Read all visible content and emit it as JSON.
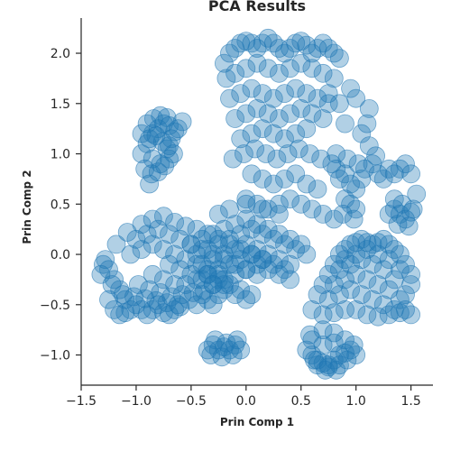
{
  "chart_data": {
    "type": "scatter",
    "title": "PCA Results",
    "xlabel": "Prin Comp 1",
    "ylabel": "Prin Comp 2",
    "xlim": [
      -1.5,
      1.7
    ],
    "ylim": [
      -1.3,
      2.35
    ],
    "xticks": [
      -1.5,
      -1.0,
      -0.5,
      0.0,
      0.5,
      1.0,
      1.5
    ],
    "xtick_labels": [
      "−1.5",
      "−1.0",
      "−0.5",
      "0.0",
      "0.5",
      "1.0",
      "1.5"
    ],
    "yticks": [
      -1.0,
      -0.5,
      0.0,
      0.5,
      1.0,
      1.5,
      2.0
    ],
    "ytick_labels": [
      "−1.0",
      "−0.5",
      "0.0",
      "0.5",
      "1.0",
      "1.5",
      "2.0"
    ],
    "grid": false,
    "marker_color": "#1f77b4",
    "marker_alpha": 0.35,
    "series": [
      {
        "x": [
          -1.05,
          -1.0,
          -0.95,
          -0.9,
          -0.85,
          -0.8,
          -0.75,
          -0.7,
          -0.65,
          -0.6,
          -1.1,
          -1.15,
          -1.2,
          -1.25,
          -1.28,
          -1.3,
          -1.22,
          -1.12,
          -1.02,
          -0.92,
          -0.82,
          -0.72,
          -0.62,
          -0.52,
          -0.45,
          -0.4,
          -0.35,
          -0.3,
          -0.25,
          -0.2,
          -1.05,
          -0.95,
          -0.85,
          -0.75,
          -0.65,
          -0.55,
          -0.45,
          -0.35,
          -0.25,
          -1.0,
          -0.9,
          -0.8,
          -0.7,
          -0.6,
          -0.5,
          -0.4,
          -0.3,
          -0.2,
          -0.1,
          0.0,
          0.1,
          -0.95,
          -0.85,
          -0.75,
          -0.65,
          -0.55,
          -0.45,
          -0.35,
          -0.25,
          -0.15,
          -0.05,
          0.05,
          0.15,
          -0.85,
          -0.75,
          -0.65,
          -0.55,
          -0.45,
          -0.35,
          -0.25,
          -0.15,
          -0.05,
          0.05,
          -0.7,
          -0.6,
          -0.5,
          -0.4,
          -0.3,
          -0.2,
          -0.1,
          0.0,
          -1.2,
          -1.15,
          -1.1,
          -1.25,
          -1.32,
          -0.98,
          -0.88,
          -0.78,
          -0.68,
          -0.58,
          -0.48,
          -0.38,
          -1.18,
          -1.08
        ],
        "y": [
          -0.55,
          -0.5,
          -0.55,
          -0.6,
          -0.55,
          -0.5,
          -0.58,
          -0.6,
          -0.55,
          -0.52,
          -0.45,
          -0.35,
          -0.25,
          -0.15,
          -0.05,
          -0.1,
          -0.3,
          -0.4,
          -0.42,
          -0.44,
          -0.46,
          -0.48,
          -0.5,
          -0.45,
          -0.5,
          -0.4,
          -0.45,
          -0.5,
          -0.4,
          -0.3,
          0.0,
          0.05,
          0.1,
          0.05,
          0.0,
          -0.05,
          -0.1,
          -0.15,
          -0.2,
          0.15,
          0.2,
          0.25,
          0.2,
          0.15,
          0.1,
          0.05,
          0.0,
          -0.05,
          -0.1,
          -0.15,
          -0.2,
          0.3,
          0.35,
          0.38,
          0.32,
          0.28,
          0.25,
          0.2,
          0.15,
          0.1,
          0.05,
          0.0,
          -0.05,
          -0.2,
          -0.25,
          -0.3,
          -0.3,
          -0.25,
          -0.2,
          -0.25,
          -0.3,
          -0.35,
          -0.4,
          -0.1,
          -0.15,
          -0.2,
          -0.25,
          -0.3,
          -0.35,
          -0.4,
          -0.45,
          -0.55,
          -0.6,
          -0.58,
          -0.45,
          -0.2,
          -0.3,
          -0.35,
          -0.38,
          -0.42,
          -0.4,
          -0.38,
          -0.36,
          0.1,
          0.22
        ]
      },
      {
        "x": [
          -0.85,
          -0.8,
          -0.75,
          -0.7,
          -0.65,
          -0.9,
          -0.95,
          -0.85,
          -0.78,
          -0.72,
          -0.68,
          -0.88,
          -0.82,
          -0.76,
          -0.7,
          -0.66,
          -0.92,
          -0.86,
          -0.8,
          -0.74,
          -0.7,
          -0.9,
          -0.84,
          -0.78,
          -0.72,
          -0.62,
          -0.58,
          -0.95,
          -0.88
        ],
        "y": [
          1.2,
          1.25,
          1.3,
          1.28,
          1.22,
          1.1,
          1.0,
          0.95,
          0.9,
          1.05,
          1.15,
          1.15,
          1.18,
          1.12,
          1.08,
          1.0,
          0.85,
          0.8,
          0.82,
          0.88,
          0.95,
          1.3,
          1.35,
          1.38,
          1.36,
          1.25,
          1.32,
          1.2,
          0.7
        ]
      },
      {
        "x": [
          -0.2,
          -0.15,
          -0.1,
          -0.05,
          0.0,
          0.05,
          0.1,
          0.15,
          0.2,
          0.25,
          0.3,
          0.35,
          0.4,
          0.45,
          0.5,
          0.55,
          0.6,
          0.65,
          0.7,
          0.75,
          0.8,
          0.85,
          -0.18,
          -0.1,
          0.0,
          0.1,
          0.2,
          0.3,
          0.4,
          0.5,
          0.6,
          0.7,
          0.8,
          -0.15,
          -0.05,
          0.05,
          0.15,
          0.25,
          0.35,
          0.45,
          0.55,
          0.65,
          0.75,
          -0.1,
          0.0,
          0.1,
          0.2,
          0.3,
          0.4,
          0.5,
          0.6,
          0.7,
          -0.05,
          0.05,
          0.15,
          0.25,
          0.35,
          0.45,
          0.55,
          -0.12,
          -0.02,
          0.08,
          0.18,
          0.28,
          0.38,
          0.48,
          0.58,
          0.68,
          0.78,
          0.82,
          0.05,
          0.15,
          0.25,
          0.35,
          0.45,
          0.55,
          0.65,
          0.0,
          0.1,
          0.2,
          0.3,
          0.4,
          0.5,
          0.6,
          0.7,
          0.8,
          0.75,
          0.85,
          0.9
        ],
        "y": [
          1.9,
          2.0,
          2.05,
          2.1,
          2.12,
          2.1,
          2.05,
          2.1,
          2.15,
          2.1,
          2.05,
          2.0,
          2.05,
          2.1,
          2.12,
          2.08,
          2.0,
          2.05,
          2.1,
          2.05,
          2.0,
          1.95,
          1.75,
          1.8,
          1.85,
          1.9,
          1.85,
          1.8,
          1.85,
          1.9,
          1.85,
          1.8,
          1.75,
          1.55,
          1.6,
          1.65,
          1.6,
          1.55,
          1.6,
          1.65,
          1.6,
          1.55,
          1.5,
          1.35,
          1.4,
          1.45,
          1.4,
          1.35,
          1.4,
          1.45,
          1.4,
          1.35,
          1.15,
          1.2,
          1.25,
          1.2,
          1.15,
          1.2,
          1.25,
          0.95,
          1.0,
          1.05,
          1.0,
          0.95,
          1.0,
          1.05,
          1.0,
          0.95,
          0.9,
          0.85,
          0.8,
          0.75,
          0.7,
          0.75,
          0.8,
          0.7,
          0.65,
          0.55,
          0.5,
          0.45,
          0.5,
          0.55,
          0.5,
          0.45,
          0.4,
          0.35,
          1.6,
          1.5,
          1.3
        ]
      },
      {
        "x": [
          -0.5,
          -0.4,
          -0.3,
          -0.2,
          -0.1,
          0.0,
          0.1,
          0.2,
          0.3,
          0.4,
          0.5,
          -0.45,
          -0.35,
          -0.25,
          -0.15,
          -0.05,
          0.05,
          0.15,
          0.25,
          0.35,
          0.45,
          0.55,
          -0.4,
          -0.3,
          -0.2,
          -0.1,
          0.0,
          0.1,
          0.2,
          0.3,
          0.4,
          -0.35,
          -0.25,
          -0.15,
          -0.05,
          0.05,
          0.15,
          0.25,
          0.35,
          -0.3,
          -0.2,
          -0.1,
          0.0,
          0.1,
          0.2,
          0.3,
          0.4,
          -0.25,
          -0.15,
          0.0,
          0.15,
          0.3
        ],
        "y": [
          0.1,
          0.15,
          0.2,
          0.25,
          0.3,
          0.35,
          0.3,
          0.25,
          0.2,
          0.15,
          0.1,
          0.0,
          0.05,
          0.1,
          0.15,
          0.2,
          0.25,
          0.2,
          0.15,
          0.1,
          0.05,
          0.0,
          -0.1,
          -0.05,
          0.0,
          0.05,
          0.1,
          0.05,
          0.0,
          -0.05,
          -0.1,
          -0.2,
          -0.15,
          -0.1,
          -0.05,
          0.0,
          -0.05,
          -0.1,
          -0.15,
          -0.3,
          -0.25,
          -0.2,
          -0.15,
          -0.1,
          -0.15,
          -0.2,
          -0.25,
          0.4,
          0.45,
          0.5,
          0.45,
          0.4
        ]
      },
      {
        "x": [
          0.85,
          0.9,
          0.95,
          1.0,
          1.05,
          1.1,
          1.15,
          1.2,
          1.25,
          1.3,
          1.35,
          1.4,
          1.45,
          1.5,
          0.8,
          0.9,
          1.0,
          1.1,
          1.2,
          1.3,
          1.4,
          1.5,
          0.75,
          0.85,
          0.95,
          1.05,
          1.15,
          1.25,
          1.35,
          1.45,
          0.7,
          0.8,
          0.9,
          1.0,
          1.1,
          1.2,
          1.3,
          1.4,
          0.65,
          0.75,
          0.85,
          0.95,
          1.05,
          1.15,
          1.25,
          1.35,
          1.45,
          1.5,
          0.6,
          0.7,
          0.8,
          0.9,
          1.0,
          1.1,
          1.2,
          1.3,
          1.4
        ],
        "y": [
          0.0,
          0.05,
          0.1,
          0.12,
          0.15,
          0.12,
          0.1,
          0.12,
          0.15,
          0.1,
          0.05,
          0.0,
          -0.1,
          -0.2,
          -0.1,
          -0.05,
          0.0,
          0.05,
          0.0,
          -0.05,
          -0.15,
          -0.3,
          -0.2,
          -0.15,
          -0.1,
          -0.05,
          -0.1,
          -0.15,
          -0.25,
          -0.4,
          -0.3,
          -0.3,
          -0.25,
          -0.2,
          -0.25,
          -0.3,
          -0.35,
          -0.45,
          -0.4,
          -0.45,
          -0.4,
          -0.35,
          -0.4,
          -0.45,
          -0.5,
          -0.55,
          -0.55,
          -0.6,
          -0.55,
          -0.6,
          -0.58,
          -0.55,
          -0.55,
          -0.6,
          -0.62,
          -0.6,
          -0.58
        ]
      },
      {
        "x": [
          0.55,
          0.6,
          0.65,
          0.7,
          0.75,
          0.8,
          0.85,
          0.9,
          0.95,
          1.0,
          0.6,
          0.7,
          0.8,
          0.9,
          0.65,
          0.75,
          0.85,
          0.7,
          0.8,
          0.58,
          0.62,
          0.72,
          0.82,
          0.92,
          0.98
        ],
        "y": [
          -0.95,
          -1.0,
          -1.05,
          -1.08,
          -1.1,
          -1.05,
          -1.0,
          -0.98,
          -0.95,
          -1.0,
          -0.85,
          -0.9,
          -0.88,
          -0.85,
          -1.1,
          -1.12,
          -1.1,
          -0.75,
          -0.78,
          -0.8,
          -1.05,
          -1.15,
          -1.15,
          -1.05,
          -0.9
        ]
      },
      {
        "x": [
          -0.35,
          -0.3,
          -0.25,
          -0.2,
          -0.15,
          -0.1,
          -0.05,
          -0.32,
          -0.22,
          -0.12,
          -0.28,
          -0.18,
          -0.08
        ],
        "y": [
          -0.95,
          -0.9,
          -0.95,
          -0.92,
          -0.95,
          -0.9,
          -0.95,
          -1.0,
          -1.02,
          -1.0,
          -0.85,
          -0.88,
          -0.85
        ]
      },
      {
        "x": [
          0.85,
          0.9,
          0.95,
          1.0,
          1.05,
          0.9,
          0.95,
          1.0,
          0.88,
          0.98,
          0.82,
          0.92,
          1.02,
          1.08,
          1.15,
          1.2,
          1.25,
          1.3,
          1.35,
          1.4,
          1.45,
          1.5,
          1.55,
          1.3,
          1.35,
          1.4,
          1.45,
          1.5,
          1.38,
          1.48,
          1.35,
          1.42,
          1.52,
          1.05,
          1.1,
          1.12,
          1.0,
          0.95,
          1.12,
          1.18
        ],
        "y": [
          0.75,
          0.8,
          0.7,
          0.65,
          0.75,
          0.55,
          0.5,
          0.45,
          0.4,
          0.35,
          1.0,
          0.95,
          0.9,
          0.85,
          0.9,
          0.8,
          0.75,
          0.85,
          0.8,
          0.85,
          0.9,
          0.8,
          0.6,
          0.4,
          0.45,
          0.4,
          0.35,
          0.42,
          0.3,
          0.28,
          0.55,
          0.5,
          0.45,
          1.2,
          1.3,
          1.45,
          1.55,
          1.65,
          1.08,
          0.98
        ]
      }
    ]
  }
}
